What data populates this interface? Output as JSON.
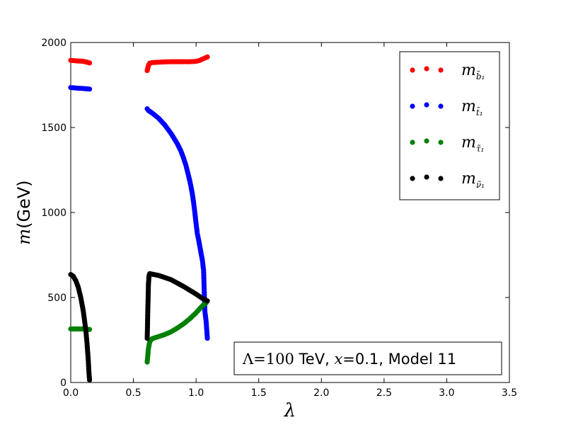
{
  "chart_data": {
    "type": "scatter",
    "title": "",
    "xlabel": "λ",
    "ylabel_math": "m",
    "ylabel_unit": "(GeV)",
    "xlim": [
      0.0,
      3.5
    ],
    "ylim": [
      0,
      2000
    ],
    "xticks": [
      "0.0",
      "0.5",
      "1.0",
      "1.5",
      "2.0",
      "2.5",
      "3.0",
      "3.5"
    ],
    "yticks": [
      "0",
      "500",
      "1000",
      "1500",
      "2000"
    ],
    "grid": false,
    "legend_position": "top-right",
    "annotation": {
      "lambda_sym": "Λ",
      "eq1": "=100",
      "tev": " TeV, ",
      "x_sym": "x",
      "rest": "=0.1, Model 11"
    },
    "series": [
      {
        "name": "m",
        "name_base": "m",
        "name_sub": "b̃₁",
        "color": "#ff0000",
        "points": [
          [
            0.0,
            1895
          ],
          [
            0.03,
            1893
          ],
          [
            0.06,
            1891
          ],
          [
            0.09,
            1890
          ],
          [
            0.12,
            1886
          ],
          [
            0.14,
            1882
          ],
          [
            0.15,
            1880
          ],
          [
            0.61,
            1835
          ],
          [
            0.615,
            1850
          ],
          [
            0.62,
            1865
          ],
          [
            0.625,
            1872
          ],
          [
            0.63,
            1878
          ],
          [
            0.65,
            1882
          ],
          [
            0.7,
            1884
          ],
          [
            0.75,
            1886
          ],
          [
            0.8,
            1887
          ],
          [
            0.85,
            1887
          ],
          [
            0.9,
            1887
          ],
          [
            0.95,
            1887
          ],
          [
            1.0,
            1889
          ],
          [
            1.03,
            1895
          ],
          [
            1.06,
            1905
          ],
          [
            1.09,
            1915
          ]
        ]
      },
      {
        "name": "m",
        "name_base": "m",
        "name_sub": "t̃₁",
        "color": "#0000ff",
        "points": [
          [
            0.0,
            1735
          ],
          [
            0.03,
            1733
          ],
          [
            0.06,
            1731
          ],
          [
            0.09,
            1730
          ],
          [
            0.12,
            1728
          ],
          [
            0.15,
            1726
          ],
          [
            0.61,
            1610
          ],
          [
            0.62,
            1600
          ],
          [
            0.65,
            1585
          ],
          [
            0.7,
            1555
          ],
          [
            0.75,
            1515
          ],
          [
            0.8,
            1465
          ],
          [
            0.85,
            1405
          ],
          [
            0.88,
            1360
          ],
          [
            0.9,
            1320
          ],
          [
            0.92,
            1275
          ],
          [
            0.94,
            1215
          ],
          [
            0.95,
            1185
          ],
          [
            0.96,
            1150
          ],
          [
            0.97,
            1110
          ],
          [
            0.98,
            1060
          ],
          [
            0.99,
            1000
          ],
          [
            1.0,
            935
          ],
          [
            1.01,
            875
          ],
          [
            1.02,
            840
          ],
          [
            1.03,
            800
          ],
          [
            1.04,
            760
          ],
          [
            1.05,
            720
          ],
          [
            1.06,
            660
          ],
          [
            1.07,
            420
          ],
          [
            1.08,
            360
          ],
          [
            1.09,
            260
          ]
        ]
      },
      {
        "name": "m",
        "name_base": "m",
        "name_sub": "τ̃₁",
        "color": "#008000",
        "points": [
          [
            0.0,
            315
          ],
          [
            0.03,
            315
          ],
          [
            0.06,
            315
          ],
          [
            0.09,
            315
          ],
          [
            0.12,
            313
          ],
          [
            0.15,
            312
          ],
          [
            0.61,
            120
          ],
          [
            0.615,
            160
          ],
          [
            0.62,
            200
          ],
          [
            0.63,
            240
          ],
          [
            0.65,
            258
          ],
          [
            0.7,
            270
          ],
          [
            0.75,
            282
          ],
          [
            0.8,
            298
          ],
          [
            0.85,
            320
          ],
          [
            0.9,
            345
          ],
          [
            0.95,
            375
          ],
          [
            1.0,
            410
          ],
          [
            1.03,
            435
          ],
          [
            1.06,
            458
          ],
          [
            1.08,
            468
          ]
        ]
      },
      {
        "name": "m",
        "name_base": "m",
        "name_sub": "ν̃₁",
        "color": "#000000",
        "points": [
          [
            0.0,
            635
          ],
          [
            0.02,
            625
          ],
          [
            0.04,
            600
          ],
          [
            0.06,
            560
          ],
          [
            0.08,
            500
          ],
          [
            0.1,
            420
          ],
          [
            0.12,
            310
          ],
          [
            0.13,
            230
          ],
          [
            0.14,
            130
          ],
          [
            0.145,
            60
          ],
          [
            0.15,
            15
          ],
          [
            0.61,
            260
          ],
          [
            0.612,
            320
          ],
          [
            0.614,
            400
          ],
          [
            0.616,
            460
          ],
          [
            0.618,
            520
          ],
          [
            0.62,
            580
          ],
          [
            0.625,
            630
          ],
          [
            0.63,
            640
          ],
          [
            0.7,
            630
          ],
          [
            0.8,
            605
          ],
          [
            0.9,
            565
          ],
          [
            1.0,
            520
          ],
          [
            1.05,
            495
          ],
          [
            1.09,
            480
          ]
        ]
      }
    ]
  }
}
